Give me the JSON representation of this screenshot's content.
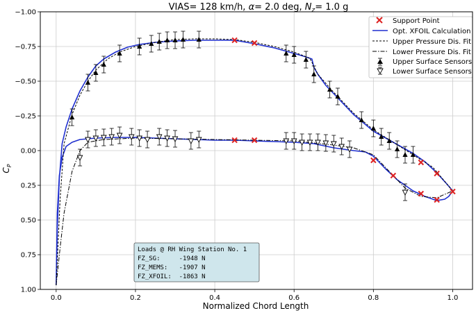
{
  "chart_data": {
    "type": "line",
    "title_parts": [
      "VIAS= 128 km/h,  ",
      "α",
      "= 2.0 deg, ",
      "N",
      "z",
      "= 1.0 g"
    ],
    "xlabel": "Normalized Chord Length",
    "ylabel_main": "C",
    "ylabel_sub": "P",
    "xlim": [
      -0.04,
      1.05
    ],
    "ylim": [
      1.0,
      -1.0
    ],
    "y_inverted": true,
    "grid": true,
    "x_ticks": [
      "0.0",
      "0.2",
      "0.4",
      "0.6",
      "0.8",
      "1.0"
    ],
    "y_ticks": [
      "−1.00",
      "−0.75",
      "−0.50",
      "−0.25",
      "0.00",
      "0.25",
      "0.50",
      "0.75",
      "1.00"
    ],
    "legend_position": "top-right",
    "legend": [
      "Support Point",
      "Opt. XFOIL Calculation",
      "Upper Pressure Dis. Fit",
      "Lower Pressure Dis. Fit",
      "Upper Surface Sensors",
      "Lower Surface Sensors"
    ],
    "colors": {
      "xfoil": "#1f2fcf",
      "support": "#dd2222",
      "fit": "#000000",
      "infobox": "#cfe6ec"
    },
    "series": [
      {
        "name": "Opt. XFOIL Calculation",
        "x": [
          0.0,
          0.003,
          0.008,
          0.015,
          0.025,
          0.04,
          0.06,
          0.08,
          0.1,
          0.12,
          0.15,
          0.18,
          0.21,
          0.25,
          0.3,
          0.35,
          0.4,
          0.45,
          0.5,
          0.55,
          0.6,
          0.63,
          0.645,
          0.65,
          0.66,
          0.68,
          0.7,
          0.75,
          0.8,
          0.85,
          0.9,
          0.93,
          0.96,
          0.985,
          1.0,
          0.99,
          0.98,
          0.96,
          0.93,
          0.9,
          0.86,
          0.83,
          0.8,
          0.78,
          0.75,
          0.7,
          0.65,
          0.6,
          0.55,
          0.5,
          0.45,
          0.4,
          0.35,
          0.3,
          0.25,
          0.2,
          0.15,
          0.1,
          0.06,
          0.04,
          0.025,
          0.015,
          0.008,
          0.003,
          0.0
        ],
        "y": [
          0.97,
          0.55,
          0.2,
          -0.05,
          -0.17,
          -0.3,
          -0.43,
          -0.53,
          -0.61,
          -0.66,
          -0.71,
          -0.745,
          -0.765,
          -0.78,
          -0.79,
          -0.795,
          -0.795,
          -0.795,
          -0.77,
          -0.74,
          -0.7,
          -0.675,
          -0.66,
          -0.6,
          -0.55,
          -0.47,
          -0.41,
          -0.26,
          -0.14,
          -0.06,
          0.02,
          0.08,
          0.16,
          0.24,
          0.29,
          0.33,
          0.35,
          0.36,
          0.33,
          0.29,
          0.21,
          0.13,
          0.04,
          0.01,
          -0.0,
          -0.02,
          -0.05,
          -0.06,
          -0.065,
          -0.07,
          -0.075,
          -0.075,
          -0.08,
          -0.085,
          -0.09,
          -0.095,
          -0.095,
          -0.09,
          -0.08,
          -0.06,
          -0.03,
          0.05,
          0.18,
          0.45,
          0.97
        ]
      },
      {
        "name": "Upper Pressure Dis. Fit",
        "x": [
          0.0,
          0.01,
          0.02,
          0.04,
          0.06,
          0.08,
          0.1,
          0.13,
          0.16,
          0.2,
          0.25,
          0.3,
          0.35,
          0.4,
          0.45,
          0.5,
          0.55,
          0.6,
          0.64,
          0.66,
          0.7,
          0.75,
          0.8,
          0.85,
          0.9,
          0.95,
          1.0
        ],
        "y": [
          0.97,
          0.35,
          -0.05,
          -0.26,
          -0.4,
          -0.5,
          -0.58,
          -0.66,
          -0.71,
          -0.75,
          -0.78,
          -0.8,
          -0.805,
          -0.805,
          -0.8,
          -0.78,
          -0.75,
          -0.71,
          -0.665,
          -0.55,
          -0.42,
          -0.27,
          -0.15,
          -0.06,
          0.03,
          0.12,
          0.29
        ]
      },
      {
        "name": "Lower Pressure Dis. Fit",
        "x": [
          0.0,
          0.01,
          0.02,
          0.04,
          0.06,
          0.08,
          0.12,
          0.2,
          0.3,
          0.4,
          0.5,
          0.6,
          0.7,
          0.75,
          0.8,
          0.85,
          0.88,
          0.92,
          0.96,
          1.0
        ],
        "y": [
          0.97,
          0.7,
          0.45,
          0.15,
          0.0,
          -0.06,
          -0.08,
          -0.09,
          -0.085,
          -0.08,
          -0.075,
          -0.07,
          -0.04,
          -0.02,
          0.03,
          0.18,
          0.27,
          0.33,
          0.34,
          0.29
        ]
      }
    ],
    "support_points": {
      "name": "Support Point",
      "x": [
        0.45,
        0.5,
        0.8,
        0.85,
        0.92,
        0.96,
        1.0,
        0.45,
        0.5,
        0.92,
        0.96
      ],
      "y": [
        -0.795,
        -0.775,
        0.07,
        0.18,
        0.31,
        0.355,
        0.295,
        -0.075,
        -0.075,
        0.085,
        0.165
      ]
    },
    "upper_sensors": {
      "name": "Upper Surface Sensors",
      "x": [
        0.04,
        0.08,
        0.1,
        0.12,
        0.16,
        0.21,
        0.24,
        0.26,
        0.28,
        0.3,
        0.32,
        0.36,
        0.58,
        0.6,
        0.63,
        0.65,
        0.69,
        0.71,
        0.77,
        0.8,
        0.82,
        0.84,
        0.86,
        0.88,
        0.9
      ],
      "y": [
        -0.24,
        -0.49,
        -0.56,
        -0.62,
        -0.7,
        -0.75,
        -0.77,
        -0.785,
        -0.795,
        -0.795,
        -0.8,
        -0.8,
        -0.7,
        -0.69,
        -0.655,
        -0.55,
        -0.44,
        -0.39,
        -0.22,
        -0.16,
        -0.1,
        -0.07,
        -0.01,
        0.03,
        0.03
      ],
      "err": 0.06
    },
    "lower_sensors": {
      "name": "Lower Surface Sensors",
      "x": [
        0.06,
        0.08,
        0.1,
        0.12,
        0.14,
        0.16,
        0.19,
        0.21,
        0.23,
        0.26,
        0.28,
        0.3,
        0.34,
        0.36,
        0.58,
        0.6,
        0.62,
        0.64,
        0.66,
        0.68,
        0.7,
        0.72,
        0.74,
        0.88
      ],
      "y": [
        0.05,
        -0.08,
        -0.09,
        -0.095,
        -0.1,
        -0.11,
        -0.1,
        -0.09,
        -0.08,
        -0.1,
        -0.09,
        -0.085,
        -0.07,
        -0.08,
        -0.07,
        -0.07,
        -0.06,
        -0.06,
        -0.06,
        -0.055,
        -0.05,
        -0.03,
        -0.01,
        0.3
      ],
      "err": 0.06
    },
    "annotation": {
      "lines": [
        "Loads @ RH Wing Station No. 1",
        "FZ_SG:     -1948 N",
        "FZ_MEMS:   -1907 N",
        "FZ_XFOIL:  -1863 N"
      ]
    }
  }
}
